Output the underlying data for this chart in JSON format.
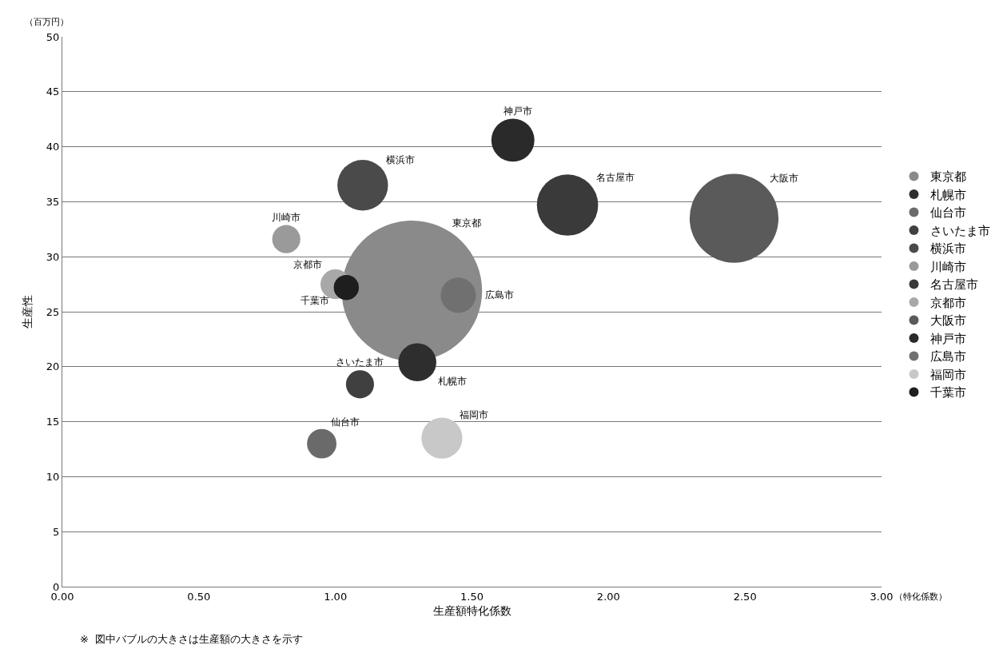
{
  "chart_data": {
    "type": "bubble",
    "xlabel": "生産額特化係数",
    "ylabel": "生産性",
    "annotations": [
      "（百万円）",
      "（特化係数）",
      "※  図中バブルの大きさは生産額の大きさを示す"
    ],
    "xlim": [
      0,
      3
    ],
    "xticks": [
      {
        "value": 0,
        "label": "0.00"
      },
      {
        "value": 0.5,
        "label": "0.50"
      },
      {
        "value": 1,
        "label": "1.00"
      },
      {
        "value": 1.5,
        "label": "1.50"
      },
      {
        "value": 2,
        "label": "2.00"
      },
      {
        "value": 2.5,
        "label": "2.50"
      },
      {
        "value": 3,
        "label": "3.00"
      }
    ],
    "ylim": [
      0,
      50
    ],
    "yticks": [
      0,
      5,
      10,
      15,
      20,
      25,
      30,
      35,
      40,
      45,
      50
    ],
    "grid": "y",
    "legend": "right",
    "series": [
      {
        "name": "東京都",
        "color": "#8a8a8a",
        "x": [
          1.28
        ],
        "values": [
          26.9
        ],
        "sizes": [
          1
        ]
      },
      {
        "name": "札幌市",
        "color": "#2e2e2e",
        "x": [
          1.3
        ],
        "values": [
          20.4
        ],
        "sizes": [
          0.073
        ]
      },
      {
        "name": "仙台市",
        "color": "#6a6a6a",
        "x": [
          0.95
        ],
        "values": [
          13
        ],
        "sizes": [
          0.044
        ]
      },
      {
        "name": "さいたま市",
        "color": "#404040",
        "x": [
          1.09
        ],
        "values": [
          18.4
        ],
        "sizes": [
          0.04
        ]
      },
      {
        "name": "横浜市",
        "color": "#4a4a4a",
        "x": [
          1.1
        ],
        "values": [
          36.5
        ],
        "sizes": [
          0.13
        ]
      },
      {
        "name": "川崎市",
        "color": "#9a9a9a",
        "x": [
          0.82
        ],
        "values": [
          31.6
        ],
        "sizes": [
          0.04
        ]
      },
      {
        "name": "名古屋市",
        "color": "#3a3a3a",
        "x": [
          1.85
        ],
        "values": [
          34.7
        ],
        "sizes": [
          0.19
        ]
      },
      {
        "name": "京都市",
        "color": "#a8a8a8",
        "x": [
          1
        ],
        "values": [
          27.5
        ],
        "sizes": [
          0.045
        ]
      },
      {
        "name": "大阪市",
        "color": "#5a5a5a",
        "x": [
          2.46
        ],
        "values": [
          33.5
        ],
        "sizes": [
          0.4
        ]
      },
      {
        "name": "神戸市",
        "color": "#2a2a2a",
        "x": [
          1.65
        ],
        "values": [
          40.6
        ],
        "sizes": [
          0.094
        ]
      },
      {
        "name": "広島市",
        "color": "#707070",
        "x": [
          1.45
        ],
        "values": [
          26.5
        ],
        "sizes": [
          0.063
        ]
      },
      {
        "name": "福岡市",
        "color": "#c8c8c8",
        "x": [
          1.39
        ],
        "values": [
          13.5
        ],
        "sizes": [
          0.085
        ]
      },
      {
        "name": "千葉市",
        "color": "#1e1e1e",
        "x": [
          1.04
        ],
        "values": [
          27.2
        ],
        "sizes": [
          0.032
        ]
      }
    ]
  }
}
